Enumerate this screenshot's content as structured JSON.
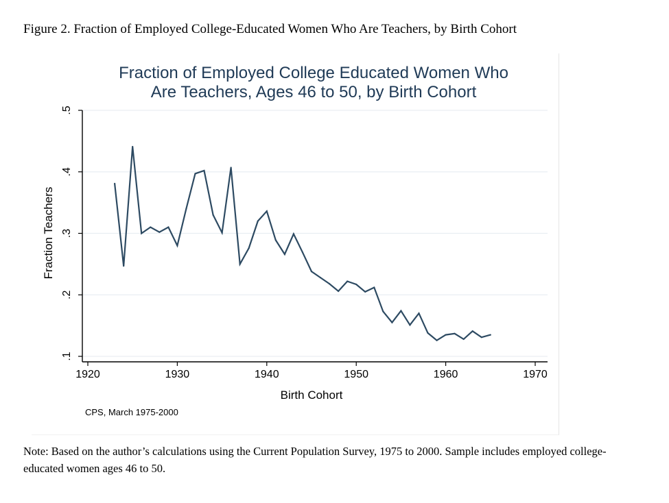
{
  "figure_caption": "Figure 2. Fraction of Employed College-Educated Women Who Are Teachers, by Birth Cohort",
  "note": "Note: Based on the author’s calculations using the Current Population Survey, 1975 to 2000. Sample includes employed college-educated women ages 46 to 50.",
  "chart_data": {
    "type": "line",
    "title_lines": [
      "Fraction of Employed College Educated Women Who",
      "Are Teachers, Ages 46 to 50, by Birth Cohort"
    ],
    "xlabel": "Birth Cohort",
    "ylabel": "Fraction Teachers",
    "source_note": "CPS, March 1975-2000",
    "xlim": [
      1920,
      1970
    ],
    "ylim": [
      0.1,
      0.5
    ],
    "x_ticks": [
      1920,
      1930,
      1940,
      1950,
      1960,
      1970
    ],
    "x_tick_labels": [
      "1920",
      "1930",
      "1940",
      "1950",
      "1960",
      "1970"
    ],
    "y_ticks": [
      0.1,
      0.2,
      0.3,
      0.4,
      0.5
    ],
    "y_tick_labels": [
      ".1",
      ".2",
      ".3",
      ".4",
      ".5"
    ],
    "grid": true,
    "line_color": "#2d4a62",
    "x": [
      1923,
      1924,
      1925,
      1926,
      1927,
      1928,
      1929,
      1930,
      1931,
      1932,
      1933,
      1934,
      1935,
      1936,
      1937,
      1938,
      1939,
      1940,
      1941,
      1942,
      1943,
      1944,
      1945,
      1946,
      1947,
      1948,
      1949,
      1950,
      1951,
      1952,
      1953,
      1954,
      1955,
      1956,
      1957,
      1958,
      1959,
      1960,
      1961,
      1962,
      1963,
      1964,
      1965
    ],
    "values": [
      0.381,
      0.247,
      0.441,
      0.3,
      0.31,
      0.302,
      0.31,
      0.28,
      0.34,
      0.397,
      0.402,
      0.33,
      0.301,
      0.407,
      0.25,
      0.276,
      0.32,
      0.336,
      0.289,
      0.266,
      0.299,
      0.269,
      0.238,
      0.228,
      0.218,
      0.206,
      0.222,
      0.217,
      0.205,
      0.212,
      0.173,
      0.155,
      0.174,
      0.151,
      0.17,
      0.138,
      0.126,
      0.135,
      0.137,
      0.128,
      0.141,
      0.131,
      0.135
    ]
  }
}
